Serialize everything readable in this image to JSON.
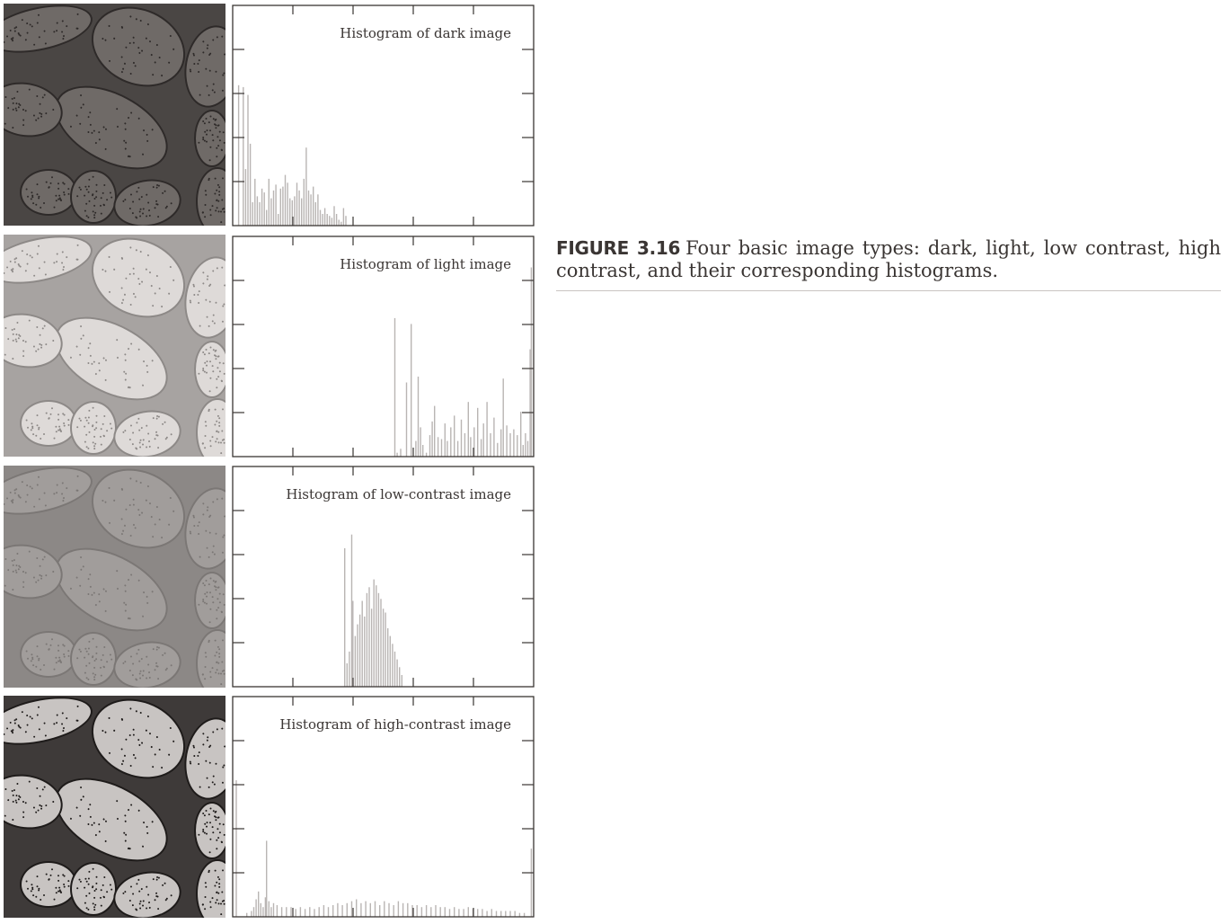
{
  "figure": {
    "label": "FIGURE 3.16",
    "caption": "Four basic image types: dark, light, low contrast, high contrast, and their corresponding histograms."
  },
  "panels": [
    {
      "id": "dark",
      "photo_tone": {
        "bg": "#4a4644",
        "leaf": "#6f6a67",
        "edge": "#2e2a29"
      }
    },
    {
      "id": "light",
      "photo_tone": {
        "bg": "#a7a3a1",
        "leaf": "#dedad8",
        "edge": "#8d8987"
      }
    },
    {
      "id": "low-contrast",
      "photo_tone": {
        "bg": "#8c8886",
        "leaf": "#a19d9b",
        "edge": "#7b7775"
      }
    },
    {
      "id": "high-contrast",
      "photo_tone": {
        "bg": "#3e3a39",
        "leaf": "#c8c4c2",
        "edge": "#1e1b1a"
      }
    }
  ],
  "chart_data": [
    {
      "type": "bar",
      "title": "Histogram of dark image",
      "xlim": [
        0,
        255
      ],
      "ylim": [
        0,
        1
      ],
      "x_ticks": 5,
      "y_ticks": 5,
      "bins": [
        [
          3,
          0.72
        ],
        [
          7,
          0.71
        ],
        [
          9,
          0.29
        ],
        [
          11,
          0.67
        ],
        [
          13,
          0.42
        ],
        [
          15,
          0.12
        ],
        [
          17,
          0.24
        ],
        [
          19,
          0.15
        ],
        [
          21,
          0.12
        ],
        [
          23,
          0.19
        ],
        [
          25,
          0.17
        ],
        [
          27,
          0.08
        ],
        [
          29,
          0.24
        ],
        [
          31,
          0.14
        ],
        [
          33,
          0.18
        ],
        [
          35,
          0.21
        ],
        [
          37,
          0.06
        ],
        [
          39,
          0.19
        ],
        [
          41,
          0.2
        ],
        [
          43,
          0.26
        ],
        [
          45,
          0.22
        ],
        [
          47,
          0.14
        ],
        [
          49,
          0.13
        ],
        [
          51,
          0.15
        ],
        [
          53,
          0.22
        ],
        [
          55,
          0.18
        ],
        [
          57,
          0.14
        ],
        [
          59,
          0.24
        ],
        [
          61,
          0.4
        ],
        [
          63,
          0.18
        ],
        [
          65,
          0.16
        ],
        [
          67,
          0.2
        ],
        [
          69,
          0.12
        ],
        [
          71,
          0.16
        ],
        [
          73,
          0.08
        ],
        [
          75,
          0.06
        ],
        [
          77,
          0.09
        ],
        [
          79,
          0.06
        ],
        [
          81,
          0.05
        ],
        [
          83,
          0.04
        ],
        [
          85,
          0.1
        ],
        [
          87,
          0.06
        ],
        [
          89,
          0.03
        ],
        [
          91,
          0.02
        ],
        [
          93,
          0.09
        ],
        [
          95,
          0.05
        ]
      ]
    },
    {
      "type": "bar",
      "title": "Histogram of light image",
      "xlim": [
        0,
        255
      ],
      "ylim": [
        0,
        1
      ],
      "x_ticks": 5,
      "y_ticks": 5,
      "bins": [
        [
          137,
          0.71
        ],
        [
          139,
          0.02
        ],
        [
          142,
          0.04
        ],
        [
          147,
          0.38
        ],
        [
          151,
          0.68
        ],
        [
          155,
          0.08
        ],
        [
          157,
          0.41
        ],
        [
          159,
          0.15
        ],
        [
          161,
          0.06
        ],
        [
          164,
          0.02
        ],
        [
          167,
          0.11
        ],
        [
          169,
          0.18
        ],
        [
          171,
          0.26
        ],
        [
          174,
          0.1
        ],
        [
          177,
          0.09
        ],
        [
          180,
          0.17
        ],
        [
          182,
          0.08
        ],
        [
          185,
          0.15
        ],
        [
          188,
          0.21
        ],
        [
          191,
          0.08
        ],
        [
          194,
          0.19
        ],
        [
          197,
          0.12
        ],
        [
          200,
          0.28
        ],
        [
          202,
          0.1
        ],
        [
          205,
          0.15
        ],
        [
          208,
          0.25
        ],
        [
          211,
          0.09
        ],
        [
          213,
          0.17
        ],
        [
          216,
          0.28
        ],
        [
          219,
          0.12
        ],
        [
          222,
          0.2
        ],
        [
          225,
          0.07
        ],
        [
          228,
          0.14
        ],
        [
          230,
          0.4
        ],
        [
          233,
          0.16
        ],
        [
          236,
          0.12
        ],
        [
          239,
          0.14
        ],
        [
          242,
          0.11
        ],
        [
          245,
          0.23
        ],
        [
          247,
          0.06
        ],
        [
          249,
          0.12
        ],
        [
          251,
          0.08
        ],
        [
          253,
          0.55
        ],
        [
          254,
          0.97
        ]
      ]
    },
    {
      "type": "bar",
      "title": "Histogram of low-contrast image",
      "xlim": [
        0,
        255
      ],
      "ylim": [
        0,
        1
      ],
      "x_ticks": 5,
      "y_ticks": 5,
      "bins": [
        [
          94,
          0.71
        ],
        [
          96,
          0.12
        ],
        [
          98,
          0.18
        ],
        [
          100,
          0.78
        ],
        [
          101,
          0.44
        ],
        [
          103,
          0.26
        ],
        [
          105,
          0.32
        ],
        [
          107,
          0.37
        ],
        [
          109,
          0.44
        ],
        [
          111,
          0.36
        ],
        [
          113,
          0.48
        ],
        [
          115,
          0.51
        ],
        [
          117,
          0.4
        ],
        [
          119,
          0.55
        ],
        [
          121,
          0.52
        ],
        [
          123,
          0.48
        ],
        [
          125,
          0.45
        ],
        [
          127,
          0.4
        ],
        [
          129,
          0.38
        ],
        [
          131,
          0.3
        ],
        [
          133,
          0.26
        ],
        [
          135,
          0.22
        ],
        [
          137,
          0.18
        ],
        [
          139,
          0.14
        ],
        [
          141,
          0.1
        ],
        [
          143,
          0.06
        ]
      ]
    },
    {
      "type": "bar",
      "title": "Histogram of high-contrast image",
      "xlim": [
        0,
        255
      ],
      "ylim": [
        0,
        1
      ],
      "x_ticks": 5,
      "y_ticks": 5,
      "bins": [
        [
          1,
          0.7
        ],
        [
          10,
          0.02
        ],
        [
          14,
          0.03
        ],
        [
          16,
          0.05
        ],
        [
          18,
          0.09
        ],
        [
          20,
          0.13
        ],
        [
          22,
          0.07
        ],
        [
          24,
          0.05
        ],
        [
          26,
          0.1
        ],
        [
          27,
          0.39
        ],
        [
          29,
          0.08
        ],
        [
          31,
          0.05
        ],
        [
          33,
          0.07
        ],
        [
          36,
          0.06
        ],
        [
          40,
          0.05
        ],
        [
          44,
          0.05
        ],
        [
          48,
          0.05
        ],
        [
          52,
          0.04
        ],
        [
          56,
          0.05
        ],
        [
          60,
          0.04
        ],
        [
          64,
          0.05
        ],
        [
          68,
          0.04
        ],
        [
          72,
          0.05
        ],
        [
          76,
          0.06
        ],
        [
          80,
          0.05
        ],
        [
          84,
          0.06
        ],
        [
          88,
          0.07
        ],
        [
          92,
          0.06
        ],
        [
          96,
          0.07
        ],
        [
          100,
          0.08
        ],
        [
          104,
          0.09
        ],
        [
          108,
          0.07
        ],
        [
          112,
          0.08
        ],
        [
          116,
          0.07
        ],
        [
          120,
          0.08
        ],
        [
          124,
          0.06
        ],
        [
          128,
          0.08
        ],
        [
          132,
          0.07
        ],
        [
          136,
          0.06
        ],
        [
          140,
          0.08
        ],
        [
          144,
          0.07
        ],
        [
          148,
          0.07
        ],
        [
          152,
          0.06
        ],
        [
          156,
          0.06
        ],
        [
          160,
          0.05
        ],
        [
          164,
          0.06
        ],
        [
          168,
          0.05
        ],
        [
          172,
          0.06
        ],
        [
          176,
          0.05
        ],
        [
          180,
          0.05
        ],
        [
          184,
          0.04
        ],
        [
          188,
          0.05
        ],
        [
          192,
          0.04
        ],
        [
          196,
          0.04
        ],
        [
          200,
          0.05
        ],
        [
          204,
          0.04
        ],
        [
          208,
          0.04
        ],
        [
          212,
          0.04
        ],
        [
          216,
          0.03
        ],
        [
          220,
          0.04
        ],
        [
          224,
          0.03
        ],
        [
          228,
          0.03
        ],
        [
          232,
          0.03
        ],
        [
          236,
          0.03
        ],
        [
          240,
          0.03
        ],
        [
          244,
          0.02
        ],
        [
          248,
          0.02
        ],
        [
          254,
          0.35
        ]
      ]
    }
  ]
}
